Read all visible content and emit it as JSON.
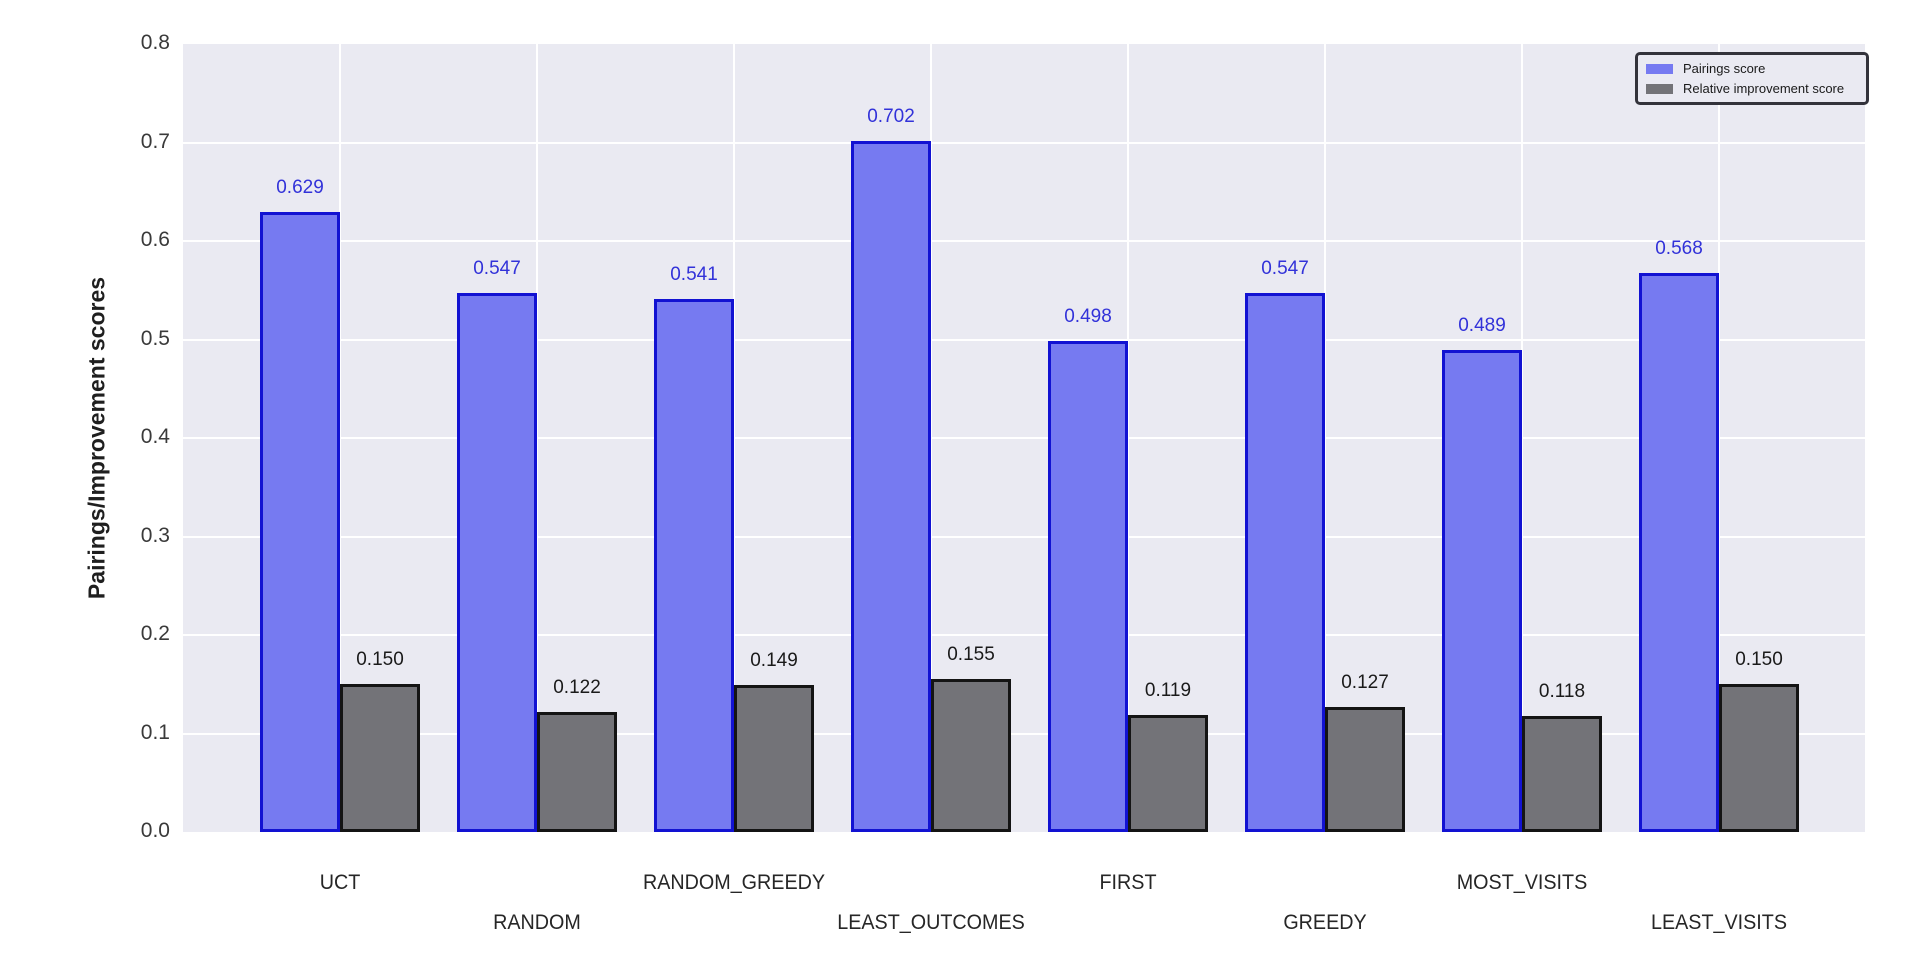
{
  "chart_data": {
    "type": "bar",
    "title": "",
    "ylabel": "Pairings/Improvement scores",
    "xlabel": "",
    "ylim": [
      0.0,
      0.8
    ],
    "ytick_step": 0.1,
    "ytick_labels": [
      "0.0",
      "0.1",
      "0.2",
      "0.3",
      "0.4",
      "0.5",
      "0.6",
      "0.7",
      "0.8"
    ],
    "grid": "on",
    "legend_position": "upper right",
    "plot_background": "#eaeaf2",
    "grid_color": "#ffffff",
    "categories": [
      "UCT",
      "RANDOM",
      "RANDOM_GREEDY",
      "LEAST_OUTCOMES",
      "FIRST",
      "GREEDY",
      "MOST_VISITS",
      "LEAST_VISITS"
    ],
    "series": [
      {
        "name": "Pairings score",
        "values": [
          0.629,
          0.547,
          0.541,
          0.702,
          0.498,
          0.547,
          0.489,
          0.568
        ],
        "value_labels": [
          "0.629",
          "0.547",
          "0.541",
          "0.702",
          "0.498",
          "0.547",
          "0.489",
          "0.568"
        ],
        "fill_color": "#767af1",
        "edge_color": "#1212d2",
        "label_color": "#3232d9"
      },
      {
        "name": "Relative improvement score",
        "values": [
          0.15,
          0.122,
          0.149,
          0.155,
          0.119,
          0.127,
          0.118,
          0.15
        ],
        "value_labels": [
          "0.150",
          "0.122",
          "0.149",
          "0.155",
          "0.119",
          "0.127",
          "0.118",
          "0.150"
        ],
        "fill_color": "#737378",
        "edge_color": "#141414",
        "label_color": "#1a1a1a"
      }
    ]
  }
}
